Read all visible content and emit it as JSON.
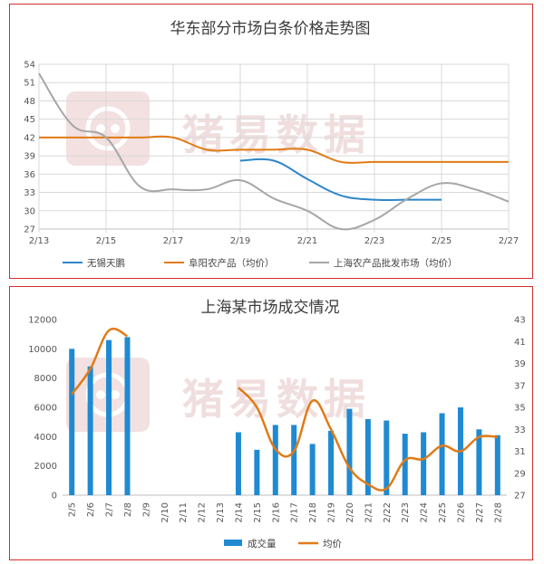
{
  "colors": {
    "blue": "#2e86c8",
    "orange": "#e07b16",
    "gray": "#a6a6a6",
    "bar": "#1f8ad1",
    "border": "#d32f2f",
    "grid": "#d9d9d9"
  },
  "watermark": "猪易数据",
  "chart_data": [
    {
      "type": "line",
      "title": "华东部分市场白条价格走势图",
      "ylim": [
        27,
        54
      ],
      "yticks": [
        27,
        30,
        33,
        36,
        39,
        42,
        45,
        48,
        51,
        54
      ],
      "x_range": [
        13,
        27
      ],
      "x_ticks": [
        13,
        15,
        17,
        19,
        21,
        23,
        25,
        27
      ],
      "x_tick_labels": [
        "2/13",
        "2/15",
        "2/17",
        "2/19",
        "2/21",
        "2/23",
        "2/25",
        "2/27"
      ],
      "grid": "horizontal",
      "legend_position": "bottom",
      "series": [
        {
          "name": "无锡天鹏",
          "color": "blue",
          "points": [
            [
              19,
              38.2
            ],
            [
              20,
              38.2
            ],
            [
              21,
              35.2
            ],
            [
              22,
              32.5
            ],
            [
              23,
              31.8
            ],
            [
              24,
              31.8
            ],
            [
              25,
              31.8
            ]
          ]
        },
        {
          "name": "阜阳农产品（均价）",
          "color": "orange",
          "points": [
            [
              13,
              42
            ],
            [
              14,
              42
            ],
            [
              15,
              42
            ],
            [
              16,
              42
            ],
            [
              17,
              42
            ],
            [
              18,
              40
            ],
            [
              19,
              40
            ],
            [
              20,
              40
            ],
            [
              21,
              40
            ],
            [
              22,
              38
            ],
            [
              23,
              38
            ],
            [
              24,
              38
            ],
            [
              25,
              38
            ],
            [
              26,
              38
            ],
            [
              27,
              38
            ]
          ]
        },
        {
          "name": "上海农产品批发市场（均价）",
          "color": "gray",
          "points": [
            [
              13,
              52.5
            ],
            [
              14,
              44
            ],
            [
              15,
              42
            ],
            [
              16,
              34
            ],
            [
              17,
              33.5
            ],
            [
              18,
              33.5
            ],
            [
              19,
              35
            ],
            [
              20,
              32
            ],
            [
              21,
              30
            ],
            [
              22,
              27
            ],
            [
              23,
              28.5
            ],
            [
              24,
              32
            ],
            [
              25,
              34.5
            ],
            [
              26,
              33.5
            ],
            [
              27,
              31.5
            ]
          ]
        }
      ]
    },
    {
      "type": "bar+line",
      "title": "上海某市场成交情况",
      "categories": [
        "2/5",
        "2/6",
        "2/7",
        "2/8",
        "2/9",
        "2/10",
        "2/11",
        "2/12",
        "2/13",
        "2/14",
        "2/15",
        "2/16",
        "2/17",
        "2/18",
        "2/19",
        "2/20",
        "2/21",
        "2/22",
        "2/23",
        "2/24",
        "2/25",
        "2/26",
        "2/27",
        "2/28"
      ],
      "y_left_lim": [
        0,
        12000
      ],
      "y_left_ticks": [
        0,
        2000,
        4000,
        6000,
        8000,
        10000,
        12000
      ],
      "y_right_lim": [
        27,
        43
      ],
      "y_right_ticks": [
        27,
        29,
        31,
        33,
        35,
        37,
        39,
        41,
        43
      ],
      "legend_position": "bottom",
      "series": [
        {
          "name": "成交量",
          "type": "bar",
          "axis": "left",
          "color": "bar",
          "values": [
            10000,
            8800,
            10600,
            10800,
            null,
            null,
            null,
            null,
            null,
            4300,
            3100,
            4800,
            4800,
            3500,
            4400,
            5900,
            5200,
            5100,
            4200,
            4300,
            5600,
            6000,
            4500,
            4100
          ]
        },
        {
          "name": "均价",
          "type": "line",
          "axis": "right",
          "color": "orange",
          "values": [
            36.2,
            38.5,
            42,
            41.5,
            null,
            null,
            null,
            null,
            null,
            36.8,
            35,
            31.2,
            31,
            35.6,
            33,
            29.5,
            28,
            27.6,
            30.2,
            30.3,
            31.5,
            31,
            32.3,
            32.3
          ]
        }
      ]
    }
  ]
}
